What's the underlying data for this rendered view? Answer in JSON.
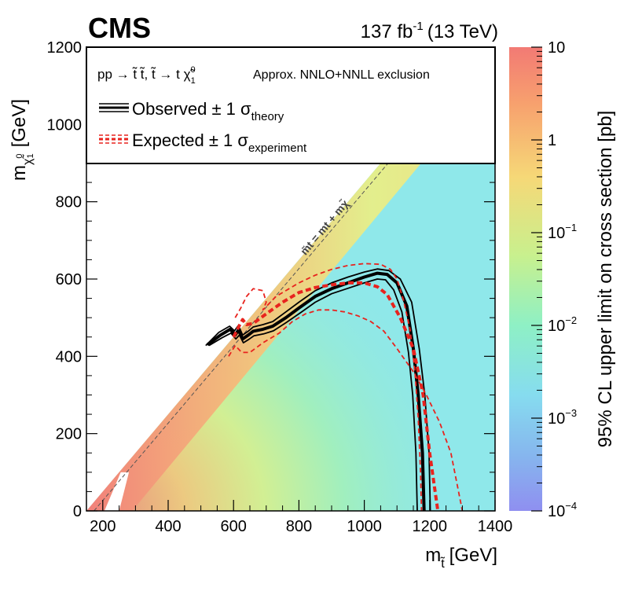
{
  "chart_data": {
    "type": "heatmap",
    "experiment": "CMS",
    "luminosity": "137 fb",
    "lumi_exp": "-1",
    "energy": "(13 TeV)",
    "xlabel": "m",
    "xlabel_sub": "t̃",
    "xlabel_unit": "[GeV]",
    "ylabel": "m",
    "ylabel_sub": "χ̃",
    "ylabel_sub_sup": "0",
    "ylabel_sub_sub": "1",
    "ylabel_unit": "[GeV]",
    "xlim": [
      150,
      1400
    ],
    "ylim": [
      0,
      1200
    ],
    "xticks": [
      200,
      400,
      600,
      800,
      1000,
      1200,
      1400
    ],
    "yticks": [
      0,
      200,
      400,
      600,
      800,
      1000,
      1200
    ],
    "zlabel": "95% CL upper limit on cross section [pb]",
    "zlim_exp": [
      -4,
      1
    ],
    "zticks": [
      {
        "value": 10,
        "label": "10",
        "sup": ""
      },
      {
        "value": 1,
        "label": "1",
        "sup": ""
      },
      {
        "value": 0.1,
        "label": "10",
        "sup": "−1"
      },
      {
        "value": 0.01,
        "label": "10",
        "sup": "−2"
      },
      {
        "value": 0.001,
        "label": "10",
        "sup": "−3"
      },
      {
        "value": 0.0001,
        "label": "10",
        "sup": "−4"
      }
    ],
    "diagonal_label": "m̃t = mt + mχ̃",
    "legend": {
      "process": "pp → t̃ t̃, t̃ → t χ̃",
      "process_sup": "0",
      "process_sub": "1",
      "approx": "Approx. NNLO+NNLL exclusion",
      "observed_label": "Observed ± 1 σ",
      "observed_sub": "theory",
      "expected_label": "Expected ± 1 σ",
      "expected_sub": "experiment"
    },
    "series": [
      {
        "name": "observed",
        "style": "black-thick",
        "points": [
          [
            520,
            430
          ],
          [
            560,
            455
          ],
          [
            590,
            470
          ],
          [
            605,
            455
          ],
          [
            615,
            468
          ],
          [
            628,
            445
          ],
          [
            645,
            455
          ],
          [
            660,
            465
          ],
          [
            690,
            470
          ],
          [
            720,
            478
          ],
          [
            760,
            500
          ],
          [
            800,
            525
          ],
          [
            850,
            555
          ],
          [
            900,
            575
          ],
          [
            950,
            590
          ],
          [
            1000,
            605
          ],
          [
            1040,
            615
          ],
          [
            1070,
            612
          ],
          [
            1100,
            590
          ],
          [
            1130,
            530
          ],
          [
            1150,
            420
          ],
          [
            1165,
            300
          ],
          [
            1178,
            150
          ],
          [
            1183,
            0
          ]
        ]
      },
      {
        "name": "observed_up",
        "style": "black-thin",
        "points": [
          [
            515,
            428
          ],
          [
            555,
            462
          ],
          [
            588,
            478
          ],
          [
            603,
            466
          ],
          [
            615,
            480
          ],
          [
            628,
            455
          ],
          [
            645,
            465
          ],
          [
            660,
            476
          ],
          [
            690,
            482
          ],
          [
            720,
            490
          ],
          [
            760,
            515
          ],
          [
            800,
            540
          ],
          [
            850,
            570
          ],
          [
            900,
            590
          ],
          [
            950,
            605
          ],
          [
            1000,
            618
          ],
          [
            1040,
            626
          ],
          [
            1075,
            622
          ],
          [
            1110,
            600
          ],
          [
            1145,
            540
          ],
          [
            1168,
            420
          ],
          [
            1185,
            300
          ],
          [
            1198,
            150
          ],
          [
            1202,
            0
          ]
        ]
      },
      {
        "name": "observed_down",
        "style": "black-thin",
        "points": [
          [
            525,
            428
          ],
          [
            565,
            448
          ],
          [
            592,
            460
          ],
          [
            607,
            445
          ],
          [
            618,
            455
          ],
          [
            630,
            435
          ],
          [
            647,
            444
          ],
          [
            662,
            453
          ],
          [
            692,
            458
          ],
          [
            722,
            466
          ],
          [
            762,
            488
          ],
          [
            800,
            510
          ],
          [
            850,
            540
          ],
          [
            900,
            562
          ],
          [
            950,
            576
          ],
          [
            1000,
            590
          ],
          [
            1040,
            600
          ],
          [
            1065,
            598
          ],
          [
            1090,
            572
          ],
          [
            1115,
            515
          ],
          [
            1135,
            410
          ],
          [
            1148,
            300
          ],
          [
            1158,
            150
          ],
          [
            1162,
            0
          ]
        ]
      },
      {
        "name": "expected",
        "style": "red-thick-dashed",
        "points": [
          [
            600,
            450
          ],
          [
            618,
            480
          ],
          [
            628,
            495
          ],
          [
            640,
            482
          ],
          [
            660,
            485
          ],
          [
            700,
            510
          ],
          [
            750,
            540
          ],
          [
            800,
            565
          ],
          [
            850,
            578
          ],
          [
            900,
            585
          ],
          [
            950,
            590
          ],
          [
            1000,
            590
          ],
          [
            1040,
            580
          ],
          [
            1070,
            560
          ],
          [
            1110,
            500
          ],
          [
            1150,
            420
          ],
          [
            1180,
            300
          ],
          [
            1200,
            150
          ],
          [
            1225,
            0
          ]
        ]
      },
      {
        "name": "expected_up",
        "style": "red-thin-dashed",
        "points": [
          [
            585,
            400
          ],
          [
            605,
            428
          ],
          [
            625,
            410
          ],
          [
            650,
            410
          ],
          [
            690,
            435
          ],
          [
            740,
            460
          ],
          [
            780,
            490
          ],
          [
            820,
            510
          ],
          [
            860,
            520
          ],
          [
            900,
            520
          ],
          [
            940,
            515
          ],
          [
            980,
            505
          ],
          [
            1020,
            490
          ],
          [
            1060,
            465
          ],
          [
            1100,
            420
          ],
          [
            1150,
            360
          ],
          [
            1190,
            300
          ],
          [
            1230,
            230
          ],
          [
            1265,
            150
          ],
          [
            1300,
            0
          ]
        ]
      },
      {
        "name": "expected_down",
        "style": "red-thin-dashed",
        "points": [
          [
            605,
            500
          ],
          [
            622,
            525
          ],
          [
            640,
            555
          ],
          [
            660,
            575
          ],
          [
            690,
            570
          ],
          [
            700,
            540
          ],
          [
            690,
            520
          ],
          [
            730,
            555
          ],
          [
            800,
            590
          ],
          [
            850,
            610
          ],
          [
            900,
            625
          ],
          [
            950,
            635
          ],
          [
            1000,
            640
          ],
          [
            1050,
            638
          ],
          [
            1080,
            625
          ],
          [
            1100,
            600
          ],
          [
            1120,
            545
          ],
          [
            1140,
            470
          ],
          [
            1155,
            360
          ],
          [
            1165,
            240
          ],
          [
            1172,
            100
          ],
          [
            1175,
            0
          ]
        ]
      }
    ]
  }
}
